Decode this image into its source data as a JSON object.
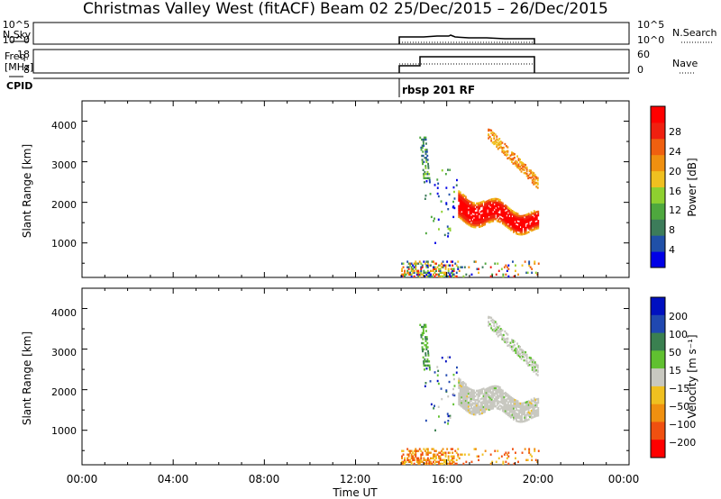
{
  "header": {
    "title": "Christmas Valley West (fitACF)",
    "beam": "Beam 02",
    "dates": "25/Dec/2015 – 26/Dec/2015"
  },
  "strip_nsky": {
    "left_label": "N.Sky",
    "left_ticks": [
      "10^5",
      "10^0"
    ],
    "right_ticks": [
      "10^5",
      "10^0"
    ],
    "right_label": "N.Search"
  },
  "strip_freq": {
    "left_label_1": "Freq.",
    "left_label_2": "[MHz]",
    "left_ticks": [
      "18",
      "8"
    ],
    "right_ticks": [
      "60",
      "0"
    ],
    "right_label": "Nave"
  },
  "strip_cpid": {
    "left_label": "CPID",
    "program": "rbsp 201 RF"
  },
  "colors": {
    "power": [
      "#0000e6",
      "#2050a8",
      "#3c7c5a",
      "#4ea83e",
      "#8ed030",
      "#f0c020",
      "#f09010",
      "#f06010",
      "#f02010",
      "#ff0000"
    ],
    "velocity": [
      "#0010c0",
      "#2048b0",
      "#3a8050",
      "#60c030",
      "#c8c8c0",
      "#f0c020",
      "#f09010",
      "#f05010",
      "#ff0000"
    ]
  },
  "chart_data": [
    {
      "type": "heatmap",
      "name": "power",
      "ylabel": "Slant Range [km]",
      "y_ticks": [
        "1000",
        "2000",
        "3000",
        "4000"
      ],
      "ylim": [
        150,
        4500
      ],
      "xlim": [
        0,
        24
      ],
      "colorbar_label": "Power [dB]",
      "colorbar_ticks": [
        "4",
        "8",
        "12",
        "16",
        "20",
        "24",
        "28"
      ],
      "data_window_hours": [
        14.0,
        20.0
      ]
    },
    {
      "type": "heatmap",
      "name": "velocity",
      "ylabel": "Slant Range [km]",
      "y_ticks": [
        "1000",
        "2000",
        "3000",
        "4000"
      ],
      "ylim": [
        150,
        4500
      ],
      "xlim": [
        0,
        24
      ],
      "colorbar_label": "Velocity [m s⁻¹]",
      "colorbar_ticks": [
        "200",
        "100",
        "50",
        "15",
        "−15",
        "−50",
        "−100",
        "−200"
      ],
      "x_ticks": [
        "00:00",
        "04:00",
        "08:00",
        "12:00",
        "16:00",
        "20:00",
        "00:00"
      ],
      "xlabel": "Time UT",
      "data_window_hours": [
        14.0,
        20.0
      ]
    }
  ]
}
